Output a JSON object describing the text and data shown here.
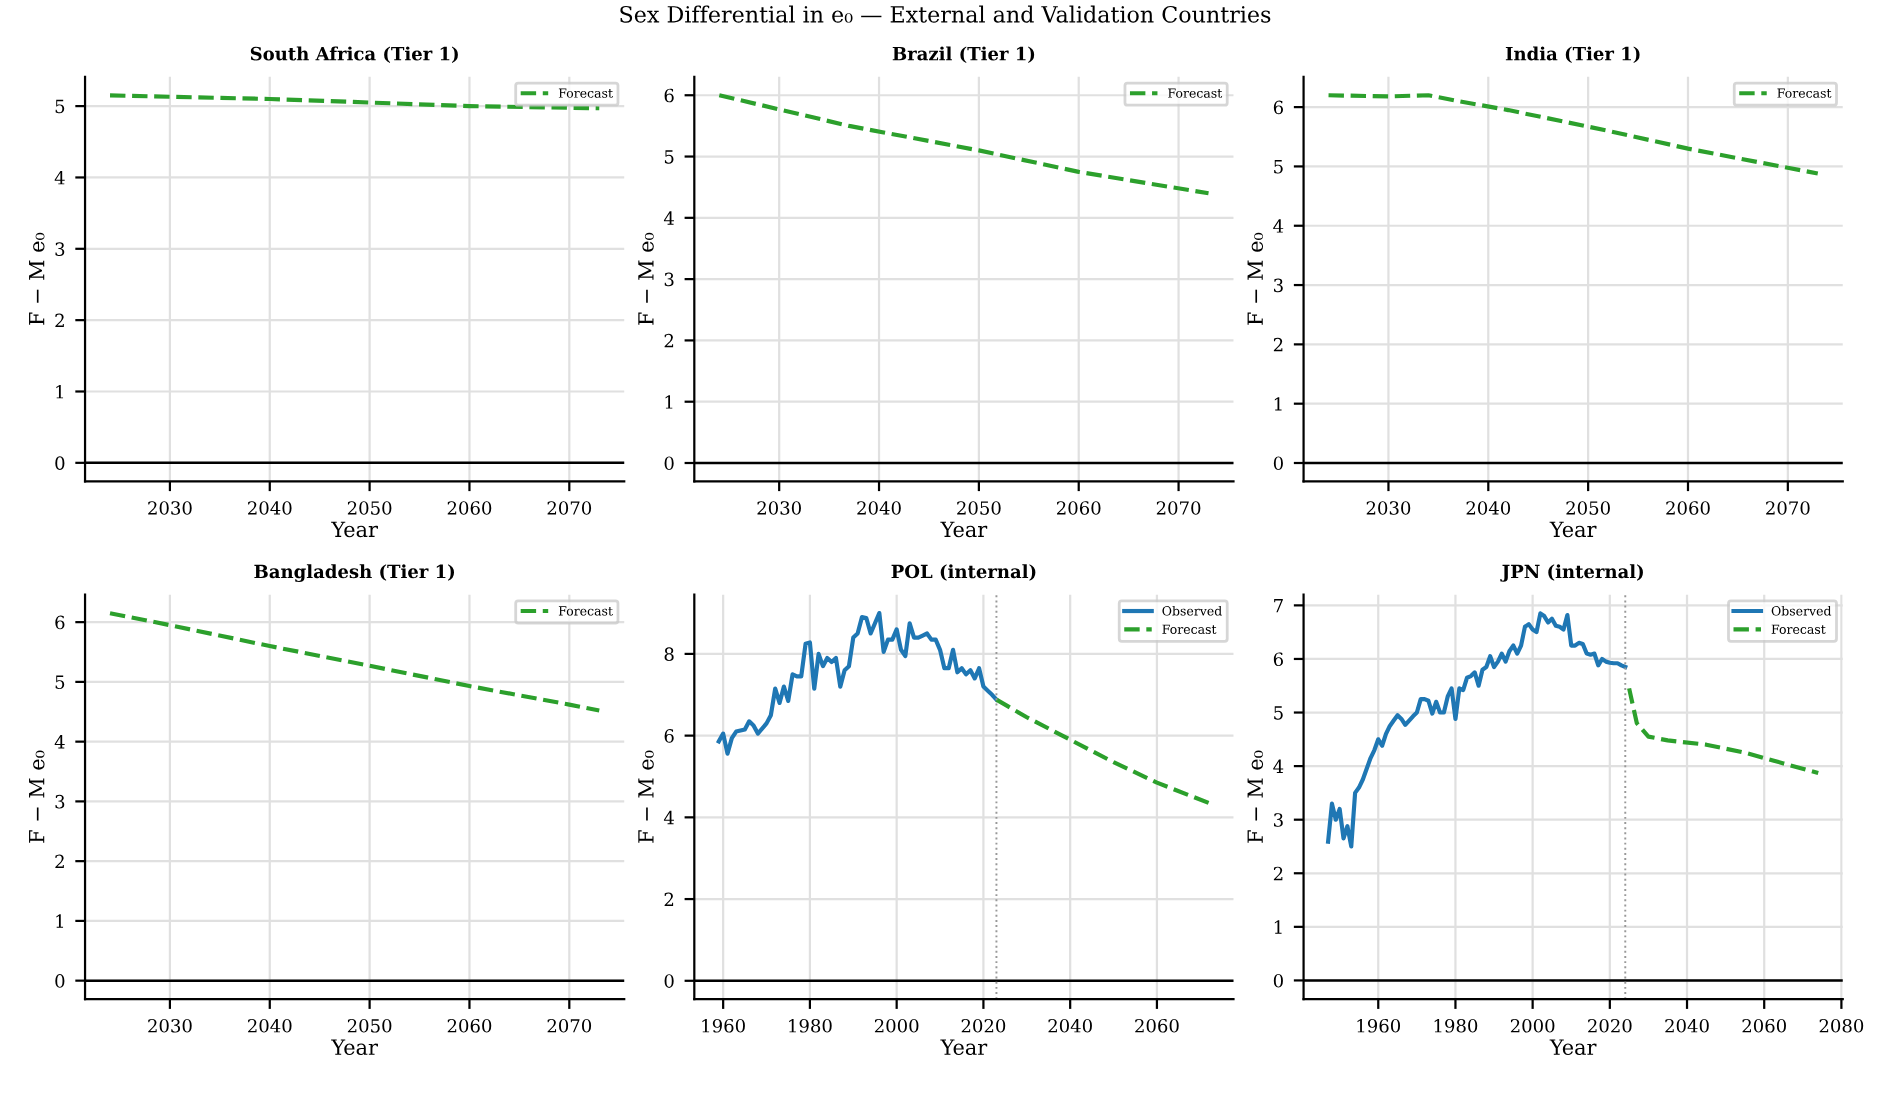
{
  "chart_data": [
    {
      "type": "line",
      "title": "South Africa (Tier 1)",
      "xlabel": "Year",
      "ylabel": "F − M e₀",
      "annotations": [
        "Sex Differential in e₀ — External and Validation Countries"
      ],
      "xlim": [
        2021.5,
        2075.5
      ],
      "xticks": [
        2030,
        2040,
        2050,
        2060,
        2070
      ],
      "ylim": [
        -0.26,
        5.41
      ],
      "yticks": [
        0,
        1,
        2,
        3,
        4,
        5
      ],
      "grid": true,
      "legend": "top right",
      "series": [
        {
          "name": "Forecast",
          "color": "#2ca02c",
          "line_style": "dashed",
          "x": [
            2024,
            2040,
            2050,
            2060,
            2073
          ],
          "values": [
            5.15,
            5.1,
            5.05,
            5.0,
            4.97
          ]
        }
      ],
      "ref_lines": [
        {
          "axis": "y",
          "value": 0,
          "color": "#000000",
          "line_style": "solid"
        }
      ]
    },
    {
      "type": "line",
      "title": "Brazil (Tier 1)",
      "xlabel": "Year",
      "ylabel": "F − M e₀",
      "xlim": [
        2021.5,
        2075.5
      ],
      "xticks": [
        2030,
        2040,
        2050,
        2060,
        2070
      ],
      "ylim": [
        -0.3,
        6.3
      ],
      "yticks": [
        0,
        1,
        2,
        3,
        4,
        5,
        6
      ],
      "grid": true,
      "legend": "top right",
      "series": [
        {
          "name": "Forecast",
          "color": "#2ca02c",
          "line_style": "dashed",
          "x": [
            2024,
            2037,
            2050,
            2060,
            2073
          ],
          "values": [
            6.0,
            5.5,
            5.1,
            4.75,
            4.4
          ]
        }
      ],
      "ref_lines": [
        {
          "axis": "y",
          "value": 0,
          "color": "#000000",
          "line_style": "solid"
        }
      ]
    },
    {
      "type": "line",
      "title": "India (Tier 1)",
      "xlabel": "Year",
      "ylabel": "F − M e₀",
      "xlim": [
        2021.5,
        2075.5
      ],
      "xticks": [
        2030,
        2040,
        2050,
        2060,
        2070
      ],
      "ylim": [
        -0.31,
        6.51
      ],
      "yticks": [
        0,
        1,
        2,
        3,
        4,
        5,
        6
      ],
      "grid": true,
      "legend": "top right",
      "series": [
        {
          "name": "Forecast",
          "color": "#2ca02c",
          "line_style": "dashed",
          "x": [
            2024,
            2030,
            2034,
            2037,
            2042,
            2052,
            2060,
            2073
          ],
          "values": [
            6.2,
            6.18,
            6.2,
            6.1,
            5.95,
            5.6,
            5.3,
            4.88
          ]
        }
      ],
      "ref_lines": [
        {
          "axis": "y",
          "value": 0,
          "color": "#000000",
          "line_style": "solid"
        }
      ]
    },
    {
      "type": "line",
      "title": "Bangladesh (Tier 1)",
      "xlabel": "Year",
      "ylabel": "F − M e₀",
      "xlim": [
        2021.5,
        2075.5
      ],
      "xticks": [
        2030,
        2040,
        2050,
        2060,
        2070
      ],
      "ylim": [
        -0.31,
        6.46
      ],
      "yticks": [
        0,
        1,
        2,
        3,
        4,
        5,
        6
      ],
      "grid": true,
      "legend": "top right",
      "series": [
        {
          "name": "Forecast",
          "color": "#2ca02c",
          "line_style": "dashed",
          "x": [
            2024,
            2030,
            2040,
            2050,
            2060,
            2070,
            2073
          ],
          "values": [
            6.15,
            5.95,
            5.6,
            5.27,
            4.93,
            4.62,
            4.52
          ]
        }
      ],
      "ref_lines": [
        {
          "axis": "y",
          "value": 0,
          "color": "#000000",
          "line_style": "solid"
        }
      ]
    },
    {
      "type": "line",
      "title": "POL (internal)",
      "xlabel": "Year",
      "ylabel": "F − M e₀",
      "xlim": [
        1953.35,
        2077.65
      ],
      "xticks": [
        1960,
        1980,
        2000,
        2020,
        2040,
        2060
      ],
      "ylim": [
        -0.45,
        9.45
      ],
      "yticks": [
        0,
        2,
        4,
        6,
        8
      ],
      "grid": true,
      "legend": "top right",
      "series": [
        {
          "name": "Observed",
          "color": "#1f77b4",
          "line_style": "solid",
          "x": [
            1959,
            1960,
            1961,
            1962,
            1963,
            1965,
            1966,
            1967,
            1968,
            1970,
            1971,
            1972,
            1973,
            1974,
            1975,
            1976,
            1977,
            1978,
            1979,
            1980,
            1981,
            1982,
            1983,
            1984,
            1985,
            1986,
            1987,
            1988,
            1989,
            1990,
            1991,
            1992,
            1993,
            1994,
            1995,
            1996,
            1997,
            1998,
            1999,
            2000,
            2001,
            2002,
            2003,
            2004,
            2005,
            2006,
            2007,
            2008,
            2009,
            2010,
            2011,
            2012,
            2013,
            2014,
            2015,
            2016,
            2017,
            2018,
            2019,
            2020,
            2021,
            2022,
            2023
          ],
          "values": [
            5.86,
            6.05,
            5.56,
            5.94,
            6.1,
            6.15,
            6.35,
            6.25,
            6.05,
            6.3,
            6.5,
            7.15,
            6.8,
            7.2,
            6.85,
            7.5,
            7.45,
            7.45,
            8.25,
            8.28,
            7.15,
            8.0,
            7.7,
            7.9,
            7.8,
            7.9,
            7.2,
            7.6,
            7.7,
            8.4,
            8.5,
            8.9,
            8.88,
            8.5,
            8.75,
            9.0,
            8.05,
            8.35,
            8.35,
            8.6,
            8.1,
            7.95,
            8.75,
            8.4,
            8.4,
            8.45,
            8.5,
            8.35,
            8.35,
            8.1,
            7.65,
            7.65,
            8.1,
            7.55,
            7.65,
            7.5,
            7.6,
            7.4,
            7.65,
            7.2,
            7.1,
            7.0,
            6.88
          ]
        },
        {
          "name": "Forecast",
          "color": "#2ca02c",
          "line_style": "dashed",
          "x": [
            2023,
            2030,
            2040,
            2050,
            2060,
            2072
          ],
          "values": [
            6.88,
            6.45,
            5.9,
            5.35,
            4.85,
            4.35
          ]
        }
      ],
      "ref_lines": [
        {
          "axis": "y",
          "value": 0,
          "color": "#000000",
          "line_style": "solid"
        },
        {
          "axis": "x",
          "value": 2023,
          "color": "#999999",
          "line_style": "dotted"
        }
      ]
    },
    {
      "type": "line",
      "title": "JPN (internal)",
      "xlabel": "Year",
      "ylabel": "F − M e₀",
      "xlim": [
        1940.65,
        2080.35
      ],
      "xticks": [
        1960,
        1980,
        2000,
        2020,
        2040,
        2060,
        2080
      ],
      "ylim": [
        -0.35,
        7.2
      ],
      "yticks": [
        0,
        1,
        2,
        3,
        4,
        5,
        6,
        7
      ],
      "grid": true,
      "legend": "top right",
      "series": [
        {
          "name": "Observed",
          "color": "#1f77b4",
          "line_style": "solid",
          "x": [
            1947,
            1948,
            1949,
            1950,
            1951,
            1952,
            1953,
            1954,
            1955,
            1956,
            1957,
            1958,
            1959,
            1960,
            1961,
            1962,
            1963,
            1964,
            1965,
            1966,
            1967,
            1968,
            1969,
            1970,
            1971,
            1972,
            1973,
            1974,
            1975,
            1976,
            1977,
            1978,
            1979,
            1980,
            1981,
            1982,
            1983,
            1984,
            1985,
            1986,
            1987,
            1988,
            1989,
            1990,
            1991,
            1992,
            1993,
            1994,
            1995,
            1996,
            1997,
            1998,
            1999,
            2000,
            2001,
            2002,
            2003,
            2004,
            2005,
            2006,
            2007,
            2008,
            2009,
            2010,
            2011,
            2012,
            2013,
            2014,
            2015,
            2016,
            2017,
            2018,
            2019,
            2020,
            2021,
            2022,
            2023,
            2024
          ],
          "values": [
            2.59,
            3.3,
            3.0,
            3.2,
            2.65,
            2.88,
            2.5,
            3.5,
            3.6,
            3.75,
            3.95,
            4.15,
            4.3,
            4.5,
            4.38,
            4.6,
            4.75,
            4.85,
            4.95,
            4.88,
            4.77,
            4.85,
            4.93,
            5.0,
            5.25,
            5.25,
            5.22,
            4.98,
            5.2,
            5.0,
            5.0,
            5.3,
            5.45,
            4.88,
            5.45,
            5.42,
            5.65,
            5.68,
            5.75,
            5.5,
            5.8,
            5.85,
            6.05,
            5.85,
            5.95,
            6.1,
            5.95,
            6.15,
            6.25,
            6.1,
            6.25,
            6.6,
            6.65,
            6.55,
            6.5,
            6.85,
            6.8,
            6.68,
            6.75,
            6.62,
            6.6,
            6.55,
            6.82,
            6.25,
            6.25,
            6.3,
            6.28,
            6.1,
            6.08,
            6.1,
            5.88,
            6.0,
            5.95,
            5.93,
            5.92,
            5.92,
            5.88,
            5.85
          ]
        },
        {
          "name": "Forecast",
          "color": "#2ca02c",
          "line_style": "dashed",
          "x": [
            2025,
            2027,
            2030,
            2035,
            2045,
            2055,
            2065,
            2074
          ],
          "values": [
            5.45,
            4.8,
            4.55,
            4.48,
            4.4,
            4.25,
            4.05,
            3.87
          ]
        }
      ],
      "ref_lines": [
        {
          "axis": "y",
          "value": 0,
          "color": "#000000",
          "line_style": "solid"
        },
        {
          "axis": "x",
          "value": 2024,
          "color": "#999999",
          "line_style": "dotted"
        }
      ]
    }
  ]
}
